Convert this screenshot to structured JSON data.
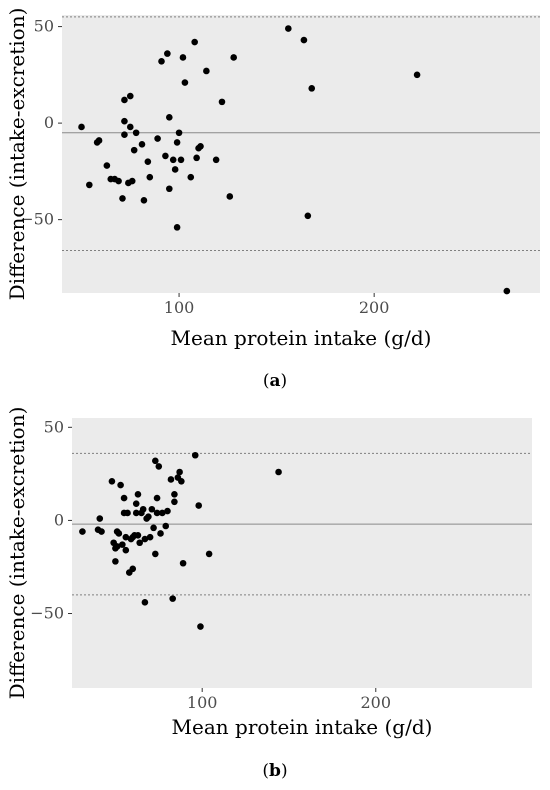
{
  "chart_data": [
    {
      "type": "scatter",
      "panel_label": "a",
      "xlabel": "Mean protein intake (g/d)",
      "ylabel": "Difference (intake-excretion)",
      "xlim": [
        40,
        285
      ],
      "ylim": [
        -88,
        56
      ],
      "x_ticks": [
        100,
        200
      ],
      "y_ticks": [
        -50,
        0,
        50
      ],
      "tick_labels": {
        "x": [
          "100",
          "200"
        ],
        "y": [
          "−50",
          "0",
          "50"
        ]
      },
      "reference_lines": {
        "mean": -5,
        "upper_loa": 55,
        "lower_loa": -66
      },
      "grid": false,
      "background": "#ebebeb",
      "point_color": "#000000",
      "points": [
        [
          50,
          -2
        ],
        [
          54,
          -32
        ],
        [
          58,
          -10
        ],
        [
          59,
          -9
        ],
        [
          63,
          -22
        ],
        [
          65,
          -29
        ],
        [
          67,
          -29
        ],
        [
          69,
          -30
        ],
        [
          71,
          -39
        ],
        [
          72,
          -6
        ],
        [
          72,
          1
        ],
        [
          72,
          12
        ],
        [
          74,
          -31
        ],
        [
          75,
          14
        ],
        [
          75,
          -2
        ],
        [
          76,
          -30
        ],
        [
          77,
          -14
        ],
        [
          78,
          -5
        ],
        [
          81,
          -11
        ],
        [
          82,
          -40
        ],
        [
          84,
          -20
        ],
        [
          85,
          -28
        ],
        [
          89,
          -8
        ],
        [
          91,
          32
        ],
        [
          93,
          -17
        ],
        [
          94,
          36
        ],
        [
          95,
          -34
        ],
        [
          95,
          3
        ],
        [
          97,
          -19
        ],
        [
          98,
          -24
        ],
        [
          99,
          -10
        ],
        [
          99,
          -54
        ],
        [
          100,
          -5
        ],
        [
          101,
          -19
        ],
        [
          102,
          34
        ],
        [
          103,
          21
        ],
        [
          106,
          -28
        ],
        [
          108,
          42
        ],
        [
          109,
          -18
        ],
        [
          110,
          -13
        ],
        [
          111,
          -12
        ],
        [
          114,
          27
        ],
        [
          119,
          -19
        ],
        [
          122,
          11
        ],
        [
          126,
          -38
        ],
        [
          128,
          34
        ],
        [
          156,
          49
        ],
        [
          164,
          43
        ],
        [
          166,
          -48
        ],
        [
          168,
          18
        ],
        [
          222,
          25
        ],
        [
          268,
          -87
        ]
      ]
    },
    {
      "type": "scatter",
      "panel_label": "b",
      "xlabel": "Mean protein intake (g/d)",
      "ylabel": "Difference (intake-excretion)",
      "xlim": [
        25,
        290
      ],
      "ylim": [
        -90,
        55
      ],
      "x_ticks": [
        100,
        200
      ],
      "y_ticks": [
        -50,
        0,
        50
      ],
      "tick_labels": {
        "x": [
          "100",
          "200"
        ],
        "y": [
          "−50",
          "0",
          "50"
        ]
      },
      "reference_lines": {
        "mean": -2,
        "upper_loa": 36,
        "lower_loa": -40
      },
      "grid": false,
      "background": "#ebebeb",
      "point_color": "#000000",
      "points": [
        [
          31,
          -6
        ],
        [
          40,
          -5
        ],
        [
          41,
          1
        ],
        [
          42,
          -6
        ],
        [
          48,
          21
        ],
        [
          49,
          -12
        ],
        [
          50,
          -15
        ],
        [
          50,
          -22
        ],
        [
          51,
          -14
        ],
        [
          51,
          -6
        ],
        [
          52,
          -7
        ],
        [
          53,
          19
        ],
        [
          54,
          -13
        ],
        [
          55,
          12
        ],
        [
          55,
          4
        ],
        [
          56,
          -16
        ],
        [
          56,
          -9
        ],
        [
          57,
          4
        ],
        [
          58,
          -28
        ],
        [
          59,
          -10
        ],
        [
          60,
          -26
        ],
        [
          60,
          -9
        ],
        [
          61,
          -8
        ],
        [
          62,
          4
        ],
        [
          62,
          9
        ],
        [
          63,
          -8
        ],
        [
          63,
          14
        ],
        [
          64,
          -12
        ],
        [
          65,
          4
        ],
        [
          66,
          6
        ],
        [
          67,
          -44
        ],
        [
          67,
          -10
        ],
        [
          68,
          1
        ],
        [
          69,
          2
        ],
        [
          70,
          -9
        ],
        [
          71,
          6
        ],
        [
          72,
          -4
        ],
        [
          73,
          -18
        ],
        [
          73,
          32
        ],
        [
          74,
          12
        ],
        [
          74,
          4
        ],
        [
          75,
          29
        ],
        [
          76,
          -7
        ],
        [
          77,
          4
        ],
        [
          79,
          -3
        ],
        [
          80,
          5
        ],
        [
          82,
          22
        ],
        [
          83,
          -42
        ],
        [
          84,
          14
        ],
        [
          84,
          10
        ],
        [
          86,
          23
        ],
        [
          87,
          26
        ],
        [
          88,
          21
        ],
        [
          89,
          -23
        ],
        [
          96,
          35
        ],
        [
          98,
          8
        ],
        [
          99,
          -57
        ],
        [
          104,
          -18
        ],
        [
          144,
          26
        ]
      ]
    }
  ]
}
